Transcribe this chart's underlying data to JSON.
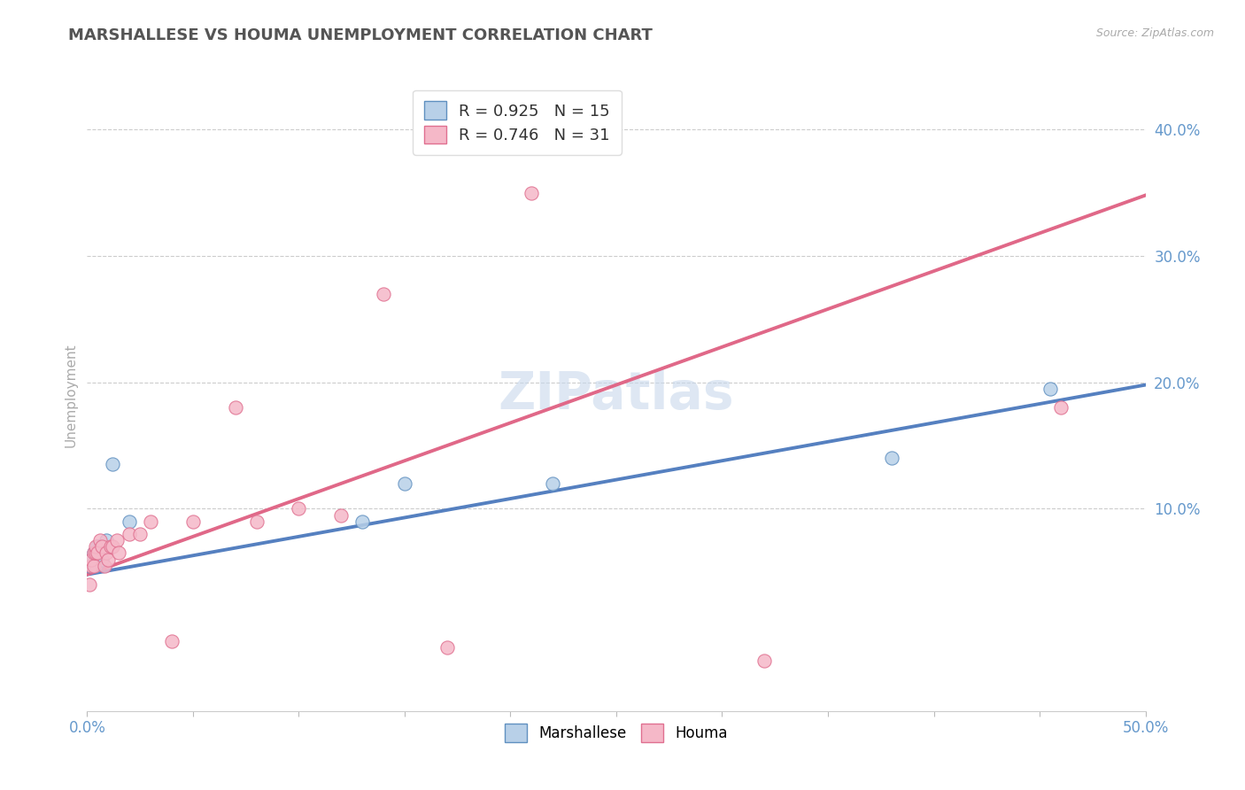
{
  "title": "MARSHALLESE VS HOUMA UNEMPLOYMENT CORRELATION CHART",
  "source": "Source: ZipAtlas.com",
  "ylabel": "Unemployment",
  "xlim": [
    0.0,
    0.5
  ],
  "ylim": [
    -0.06,
    0.44
  ],
  "background_color": "#ffffff",
  "grid_color": "#cccccc",
  "blue_fill": "#b8d0e8",
  "pink_fill": "#f5b8c8",
  "blue_edge": "#6090c0",
  "pink_edge": "#e07090",
  "blue_line": "#5580c0",
  "pink_line": "#e06888",
  "title_color": "#555555",
  "axis_label_color": "#6699cc",
  "watermark": "ZIPatlas",
  "legend_r_blue": "R = 0.925",
  "legend_n_blue": "N = 15",
  "legend_r_pink": "R = 0.746",
  "legend_n_pink": "N = 31",
  "marshallese_x": [
    0.001,
    0.002,
    0.003,
    0.004,
    0.005,
    0.006,
    0.007,
    0.009,
    0.012,
    0.02,
    0.13,
    0.15,
    0.22,
    0.38,
    0.455
  ],
  "marshallese_y": [
    0.055,
    0.06,
    0.065,
    0.055,
    0.07,
    0.07,
    0.06,
    0.075,
    0.135,
    0.09,
    0.09,
    0.12,
    0.12,
    0.14,
    0.195
  ],
  "houma_x": [
    0.001,
    0.002,
    0.002,
    0.003,
    0.003,
    0.004,
    0.004,
    0.005,
    0.006,
    0.007,
    0.008,
    0.009,
    0.01,
    0.011,
    0.012,
    0.014,
    0.015,
    0.02,
    0.025,
    0.03,
    0.04,
    0.05,
    0.07,
    0.08,
    0.1,
    0.12,
    0.14,
    0.17,
    0.21,
    0.32,
    0.46
  ],
  "houma_y": [
    0.04,
    0.055,
    0.06,
    0.055,
    0.065,
    0.065,
    0.07,
    0.065,
    0.075,
    0.07,
    0.055,
    0.065,
    0.06,
    0.07,
    0.07,
    0.075,
    0.065,
    0.08,
    0.08,
    0.09,
    -0.005,
    0.09,
    0.18,
    0.09,
    0.1,
    0.095,
    0.27,
    -0.01,
    0.35,
    -0.02,
    0.18
  ],
  "blue_line_x": [
    0.0,
    0.5
  ],
  "blue_line_y": [
    0.048,
    0.198
  ],
  "pink_line_x": [
    0.0,
    0.5
  ],
  "pink_line_y": [
    0.048,
    0.348
  ],
  "ytick_positions": [
    0.1,
    0.2,
    0.3,
    0.4
  ],
  "ytick_labels": [
    "10.0%",
    "20.0%",
    "30.0%",
    "40.0%"
  ],
  "marker_size": 120
}
